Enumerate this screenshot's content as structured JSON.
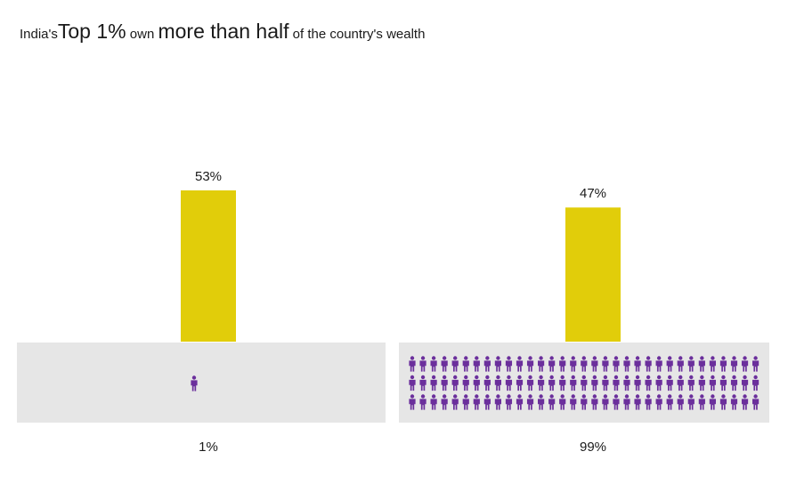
{
  "title": {
    "part1": "India's",
    "part2": "Top 1%",
    "part3": " own ",
    "part4": "more than half",
    "part5": " of the country's wealth"
  },
  "colors": {
    "bar": "#e1cd0a",
    "panel": "#e6e6e6",
    "person": "#6b2f9c"
  },
  "icons": {
    "person": "person-icon"
  },
  "chart_data": {
    "type": "bar",
    "categories": [
      "1%",
      "99%"
    ],
    "values": [
      53,
      47
    ],
    "value_labels": [
      "53%",
      "47%"
    ],
    "ylim": [
      0,
      53
    ],
    "person_counts": [
      1,
      99
    ],
    "grid": false
  }
}
